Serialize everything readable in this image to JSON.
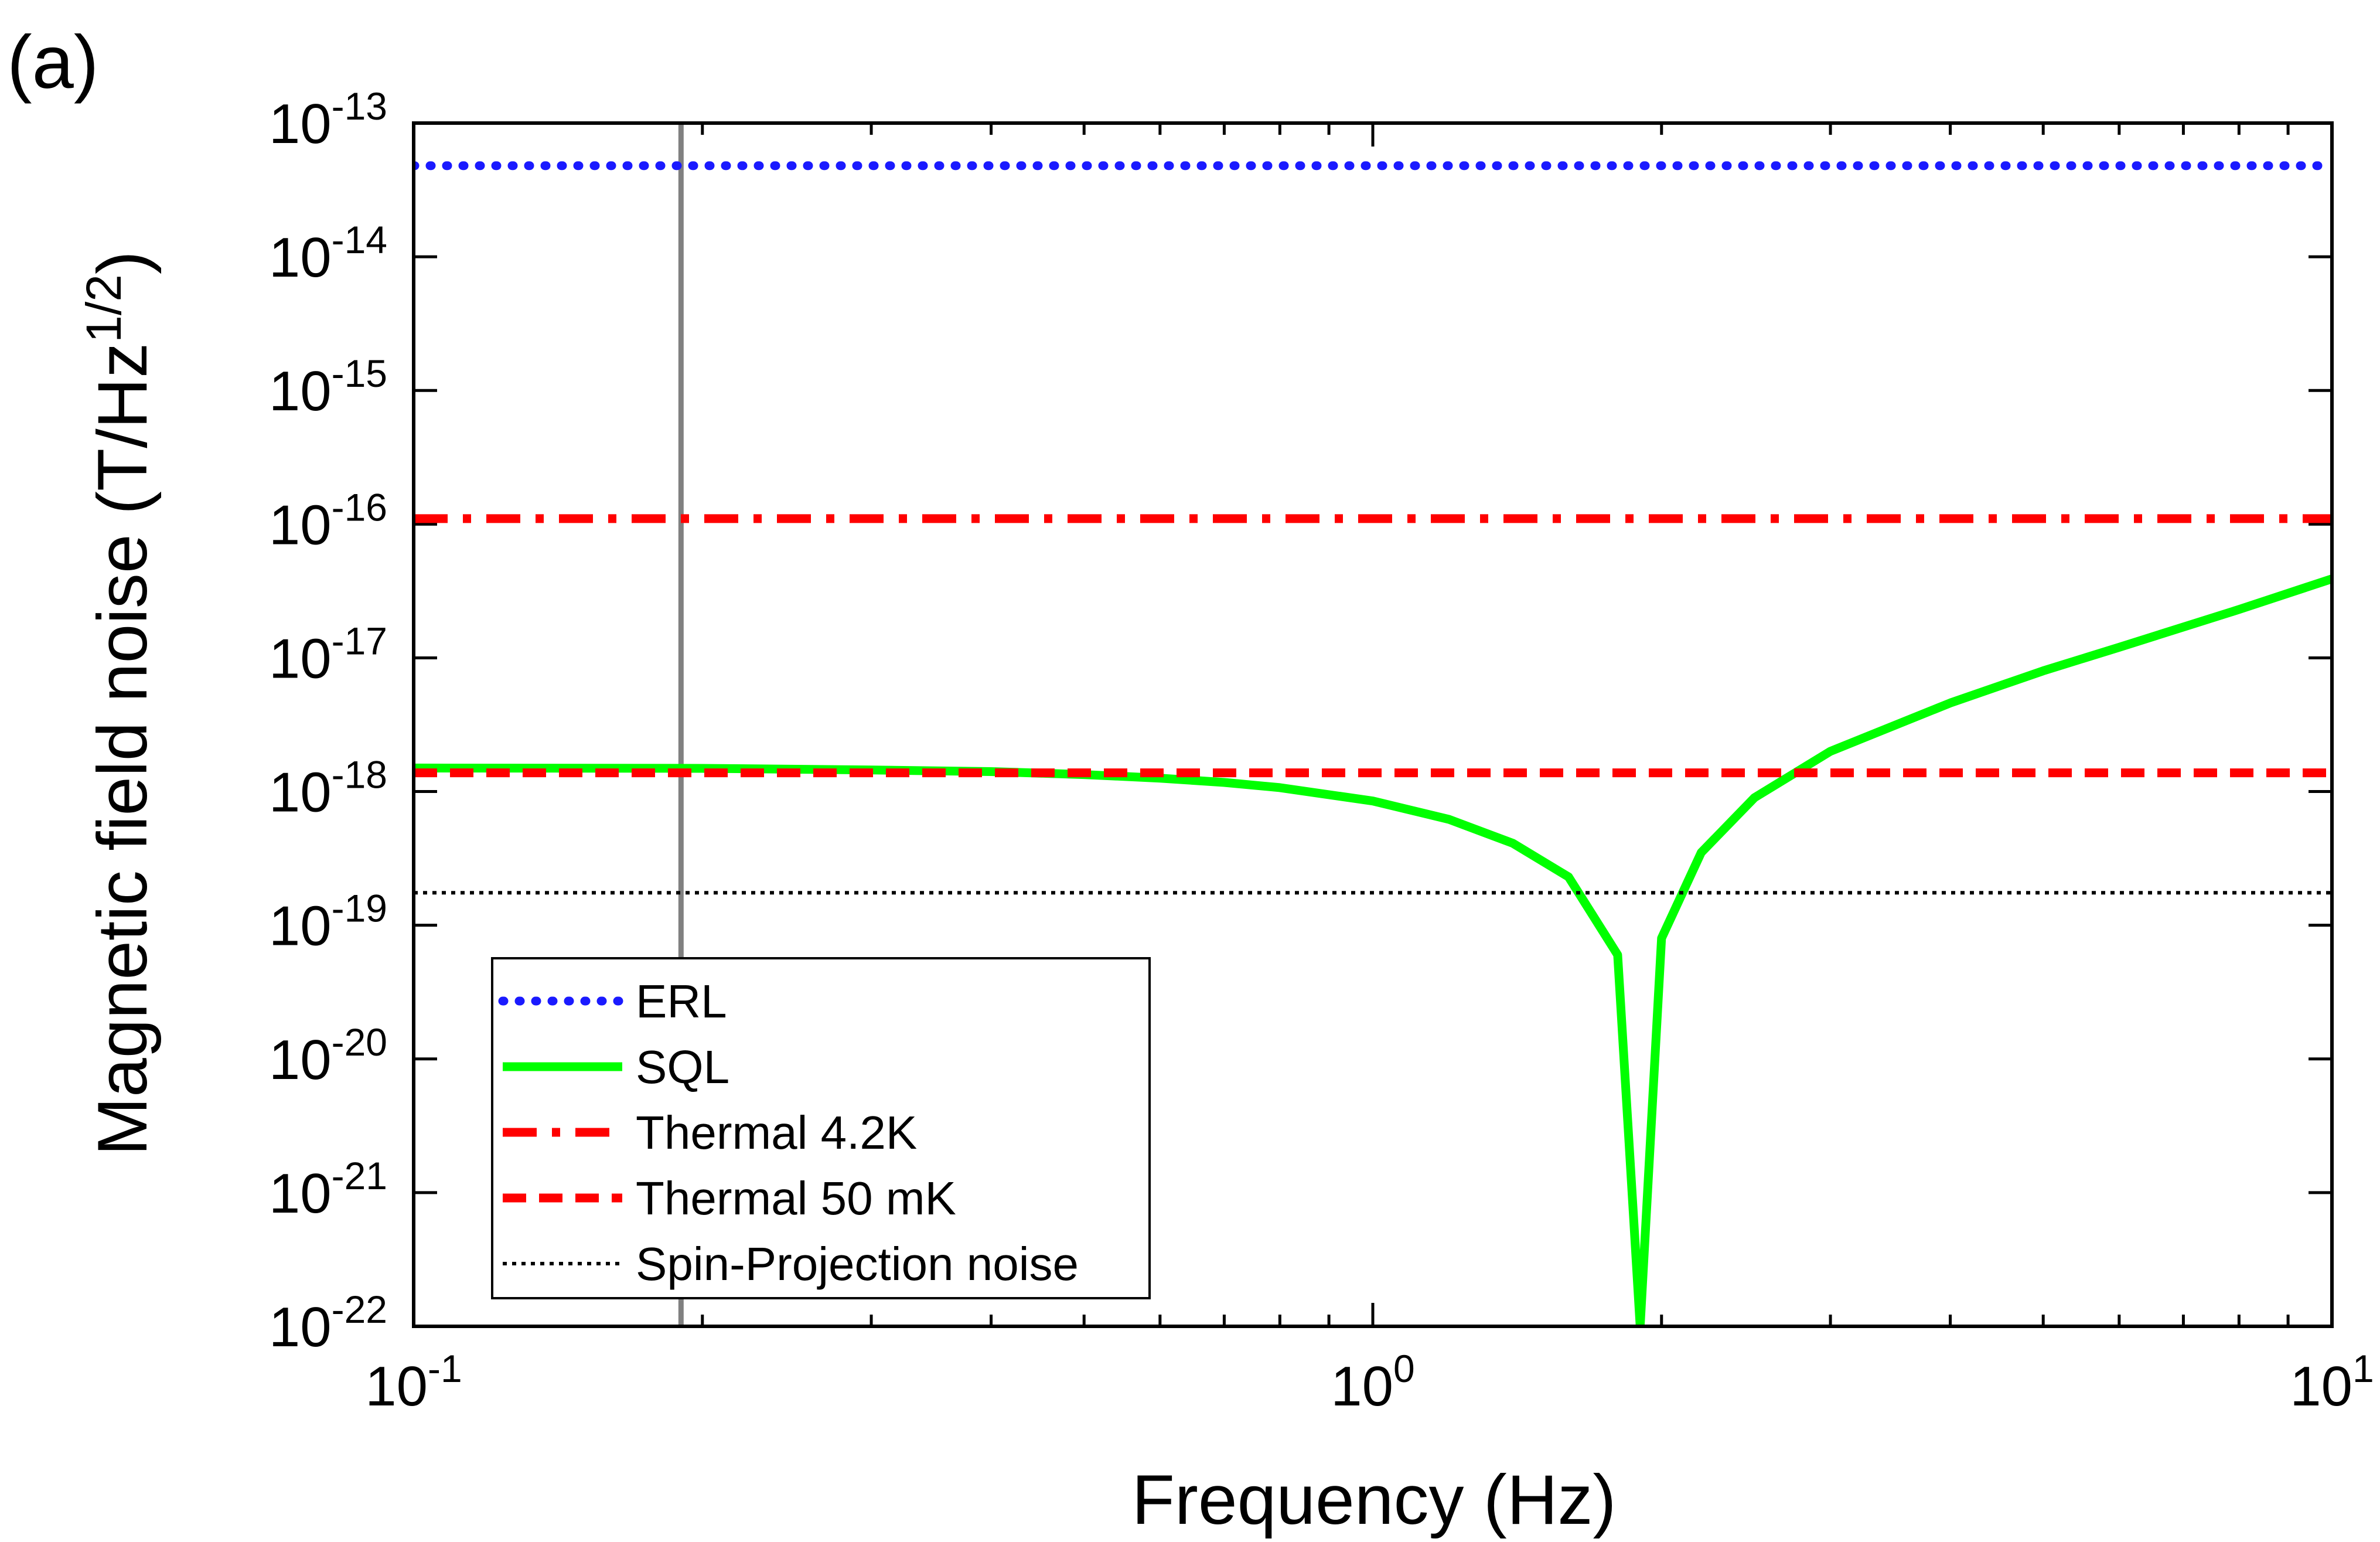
{
  "chart_data": {
    "type": "line",
    "panel_label": "(a)",
    "xlabel": "Frequency (Hz)",
    "ylabel": {
      "main": "Magnetic field noise (T/Hz",
      "sup": "1/2",
      "tail": ")"
    },
    "xscale": "log",
    "yscale": "log",
    "xlim": [
      0.1,
      10
    ],
    "ylim": [
      1e-22,
      1e-13
    ],
    "x_ticks": [
      {
        "value": 0.1,
        "base": "10",
        "exp": "-1"
      },
      {
        "value": 1,
        "base": "10",
        "exp": "0"
      },
      {
        "value": 10,
        "base": "10",
        "exp": "1"
      }
    ],
    "y_ticks": [
      {
        "value": 1e-13,
        "base": "10",
        "exp": "-13"
      },
      {
        "value": 1e-14,
        "base": "10",
        "exp": "-14"
      },
      {
        "value": 1e-15,
        "base": "10",
        "exp": "-15"
      },
      {
        "value": 1e-16,
        "base": "10",
        "exp": "-16"
      },
      {
        "value": 1e-17,
        "base": "10",
        "exp": "-17"
      },
      {
        "value": 1e-18,
        "base": "10",
        "exp": "-18"
      },
      {
        "value": 1e-19,
        "base": "10",
        "exp": "-19"
      },
      {
        "value": 1e-20,
        "base": "10",
        "exp": "-20"
      },
      {
        "value": 1e-21,
        "base": "10",
        "exp": "-21"
      },
      {
        "value": 1e-22,
        "base": "10",
        "exp": "-22"
      }
    ],
    "vertical_marker": {
      "x": 0.19,
      "color": "#808080"
    },
    "legend_position": "bottom-left",
    "series": [
      {
        "name": "ERL",
        "kind": "constant",
        "value": 4.8e-14,
        "color": "#1a1aff",
        "style": "dotted"
      },
      {
        "name": "SQL",
        "kind": "sql",
        "color": "#00ff00",
        "style": "solid",
        "x": [
          0.1,
          0.2,
          0.3,
          0.4,
          0.5,
          0.6,
          0.7,
          0.8,
          1.0,
          1.2,
          1.4,
          1.6,
          1.8,
          1.9,
          2.0,
          2.2,
          2.5,
          3.0,
          4.0,
          5.0,
          6.0,
          8.0,
          10.0
        ],
        "y": [
          1.5e-18,
          1.49e-18,
          1.45e-18,
          1.41e-18,
          1.34e-18,
          1.26e-18,
          1.17e-18,
          1.07e-18,
          8.5e-19,
          6.2e-19,
          4.1e-19,
          2.3e-19,
          6e-20,
          1e-22,
          8e-20,
          3.5e-19,
          9e-19,
          2e-18,
          4.6e-18,
          8e-18,
          1.2e-17,
          2.3e-17,
          3.9e-17
        ]
      },
      {
        "name": "Thermal 4.2K",
        "kind": "constant",
        "value": 1.1e-16,
        "color": "#ff0000",
        "style": "dashdot"
      },
      {
        "name": "Thermal 50 mK",
        "kind": "constant",
        "value": 1.38e-18,
        "color": "#ff0000",
        "style": "dashed"
      },
      {
        "name": "Spin-Projection noise",
        "kind": "constant",
        "value": 1.75e-19,
        "color": "#000000",
        "style": "dotted-thin"
      }
    ]
  }
}
